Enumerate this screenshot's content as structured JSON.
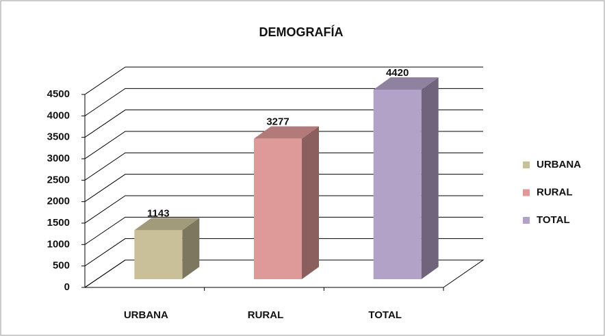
{
  "chart_data": {
    "type": "bar3d",
    "title": "DEMOGRAFÍA",
    "categories": [
      "URBANA",
      "RURAL",
      "TOTAL"
    ],
    "values": [
      1143,
      3277,
      4420
    ],
    "colors": [
      "#c9c09a",
      "#de9a98",
      "#b3a2c8"
    ],
    "ylim": [
      0,
      4500
    ],
    "yticks": [
      0,
      500,
      1000,
      1500,
      2000,
      2500,
      3000,
      3500,
      4000,
      4500
    ],
    "grid": true,
    "legend": "right"
  }
}
